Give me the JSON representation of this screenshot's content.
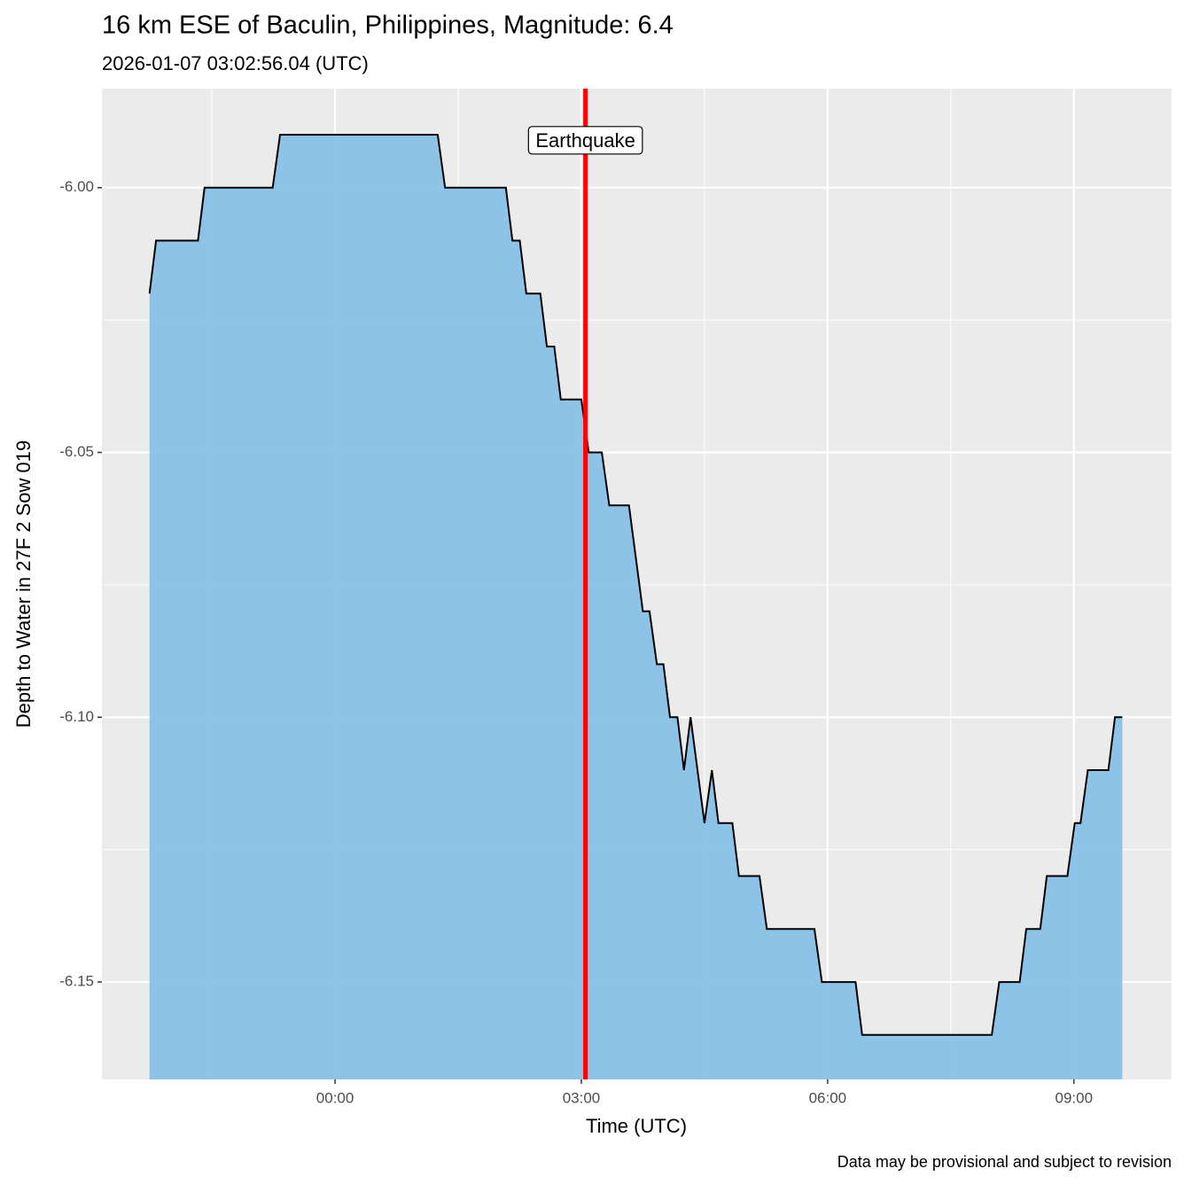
{
  "chart_data": {
    "type": "area",
    "title": "16 km ESE of Baculin, Philippines, Magnitude: 6.4",
    "subtitle": "2026-01-07 03:02:56.04 (UTC)",
    "x_label": "Time (UTC)",
    "y_label": "Depth to Water in 27F 2 Sow 019",
    "caption": "Data may be provisional and subject to revision",
    "series": [
      {
        "name": "Depth to Water",
        "color": "#000000",
        "fill": "#87c1e7",
        "x": [
          -2.26,
          -2.18,
          -1.67,
          -1.59,
          -0.76,
          -0.67,
          1.25,
          1.34,
          2.08,
          2.16,
          2.25,
          2.33,
          2.5,
          2.58,
          2.67,
          2.75,
          3.0,
          3.09,
          3.25,
          3.34,
          3.58,
          3.75,
          3.83,
          3.92,
          4.0,
          4.08,
          4.17,
          4.25,
          4.33,
          4.5,
          4.59,
          4.67,
          4.84,
          4.92,
          5.17,
          5.26,
          5.84,
          5.93,
          6.34,
          6.42,
          8.0,
          8.09,
          8.34,
          8.42,
          8.59,
          8.67,
          8.92,
          9.01,
          9.08,
          9.17,
          9.42,
          9.5,
          9.59
        ],
        "values": [
          -6.02,
          -6.01,
          -6.01,
          -6.0,
          -6.0,
          -5.99,
          -5.99,
          -6.0,
          -6.0,
          -6.01,
          -6.01,
          -6.02,
          -6.02,
          -6.03,
          -6.03,
          -6.04,
          -6.04,
          -6.05,
          -6.05,
          -6.06,
          -6.06,
          -6.08,
          -6.08,
          -6.09,
          -6.09,
          -6.1,
          -6.1,
          -6.11,
          -6.1,
          -6.12,
          -6.11,
          -6.12,
          -6.12,
          -6.13,
          -6.13,
          -6.14,
          -6.14,
          -6.15,
          -6.15,
          -6.16,
          -6.16,
          -6.15,
          -6.15,
          -6.14,
          -6.14,
          -6.13,
          -6.13,
          -6.12,
          -6.12,
          -6.11,
          -6.11,
          -6.1,
          -6.1
        ]
      }
    ],
    "event": {
      "label": "Earthquake",
      "x": 3.05,
      "color": "#ff0000"
    },
    "xlim": [
      -2.84,
      10.19
    ],
    "xticks": [
      {
        "value": 0,
        "label": "00:00"
      },
      {
        "value": 3,
        "label": "03:00"
      },
      {
        "value": 6,
        "label": "06:00"
      },
      {
        "value": 9,
        "label": "09:00"
      }
    ],
    "x_minor_ticks": [
      -1.5,
      1.5,
      4.5,
      7.5
    ],
    "ylim": [
      -6.1684,
      -5.9813
    ],
    "yticks": [
      {
        "value": -6.0,
        "label": "-6.00"
      },
      {
        "value": -6.05,
        "label": "-6.05"
      },
      {
        "value": -6.1,
        "label": "-6.10"
      },
      {
        "value": -6.15,
        "label": "-6.15"
      }
    ],
    "y_minor_ticks": [
      -6.025,
      -6.075,
      -6.125
    ],
    "grid": true
  }
}
